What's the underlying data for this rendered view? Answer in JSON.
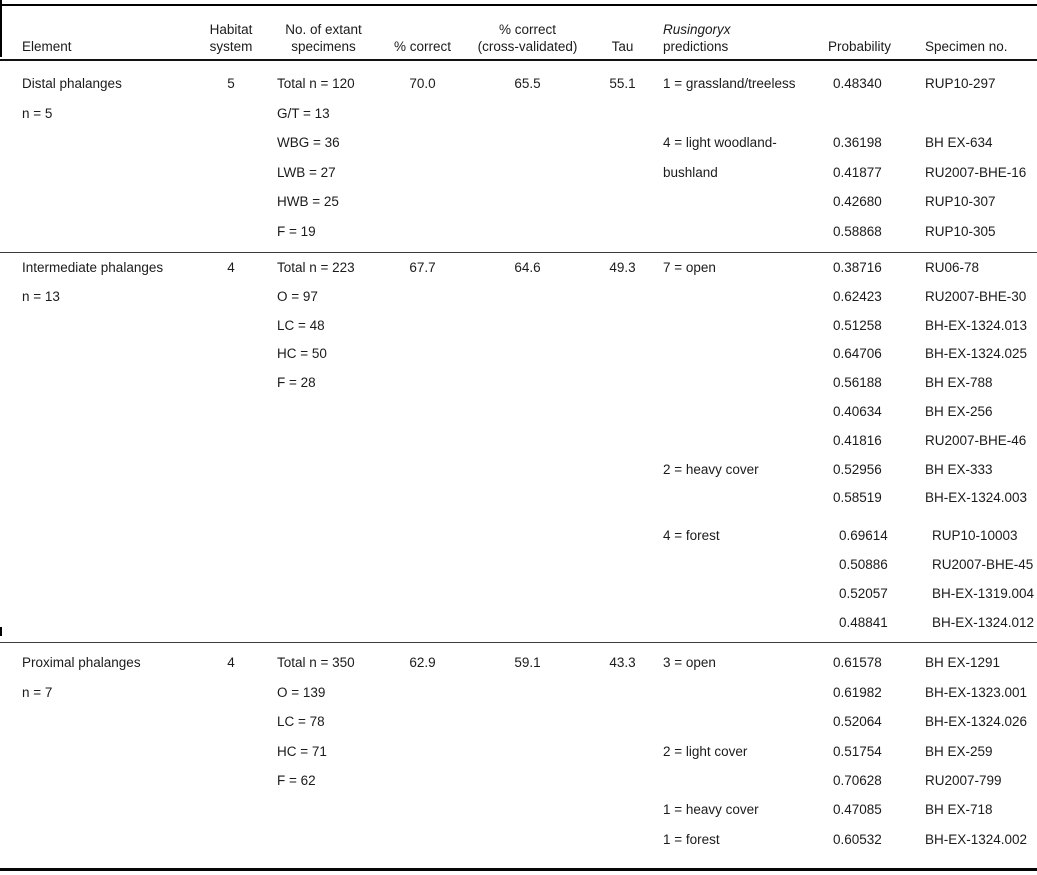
{
  "colors": {
    "text": "#1b1b1b",
    "rule": "#000000"
  },
  "table": {
    "columns": [
      {
        "id": "element",
        "lines": [
          "Element"
        ]
      },
      {
        "id": "habitat-system",
        "lines": [
          "Habitat",
          "system"
        ]
      },
      {
        "id": "extant-specimens",
        "lines": [
          "No. of extant",
          "specimens"
        ]
      },
      {
        "id": "pct-correct",
        "lines": [
          "% correct"
        ]
      },
      {
        "id": "pct-correct-cv",
        "lines": [
          "% correct",
          "(cross-validated)"
        ]
      },
      {
        "id": "tau",
        "lines": [
          "Tau"
        ]
      },
      {
        "id": "prediction",
        "lines": [
          "Rusingoryx",
          "predictions"
        ],
        "italic_line": 0
      },
      {
        "id": "probability",
        "lines": [
          "Probability"
        ]
      },
      {
        "id": "specimen-no",
        "lines": [
          "Specimen no."
        ]
      }
    ],
    "blocks": [
      {
        "element": "Distal phalanges",
        "rows": [
          {
            "cells": [
              "Distal phalanges",
              "5",
              "Total n = 120",
              "70.0",
              "65.5",
              "55.1",
              "1 = grassland/treeless",
              "0.48340",
              "RUP10-297"
            ]
          },
          {
            "cells": [
              "n = 5",
              "",
              "G/T = 13",
              "",
              "",
              "",
              "",
              "",
              ""
            ]
          },
          {
            "cells": [
              "",
              "",
              "WBG = 36",
              "",
              "",
              "",
              "4 = light woodland-",
              "0.36198",
              "BH EX-634"
            ]
          },
          {
            "cells": [
              "",
              "",
              "LWB = 27",
              "",
              "",
              "",
              "bushland",
              "0.41877",
              "RU2007-BHE-16"
            ]
          },
          {
            "cells": [
              "",
              "",
              "HWB = 25",
              "",
              "",
              "",
              "",
              "0.42680",
              "RUP10-307"
            ]
          },
          {
            "cells": [
              "",
              "",
              "F = 19",
              "",
              "",
              "",
              "",
              "0.58868",
              "RUP10-305"
            ]
          }
        ]
      },
      {
        "element": "Intermediate phalanges",
        "rows": [
          {
            "cells": [
              "Intermediate phalanges",
              "4",
              "Total n = 223",
              "67.7",
              "64.6",
              "49.3",
              "7 = open",
              "0.38716",
              "RU06-78"
            ]
          },
          {
            "cells": [
              "n = 13",
              "",
              "O = 97",
              "",
              "",
              "",
              "",
              "0.62423",
              "RU2007-BHE-30"
            ]
          },
          {
            "cells": [
              "",
              "",
              "LC = 48",
              "",
              "",
              "",
              "",
              "0.51258",
              "BH-EX-1324.013"
            ]
          },
          {
            "cells": [
              "",
              "",
              "HC = 50",
              "",
              "",
              "",
              "",
              "0.64706",
              "BH-EX-1324.025"
            ]
          },
          {
            "cells": [
              "",
              "",
              "F = 28",
              "",
              "",
              "",
              "",
              "0.56188",
              "BH EX-788"
            ]
          },
          {
            "cells": [
              "",
              "",
              "",
              "",
              "",
              "",
              "",
              "0.40634",
              "BH EX-256"
            ]
          },
          {
            "cells": [
              "",
              "",
              "",
              "",
              "",
              "",
              "",
              "0.41816",
              "RU2007-BHE-46"
            ]
          },
          {
            "cells": [
              "",
              "",
              "",
              "",
              "",
              "",
              "2 = heavy cover",
              "0.52956",
              "BH EX-333"
            ]
          },
          {
            "cells": [
              "",
              "",
              "",
              "",
              "",
              "",
              "",
              "0.58519",
              "BH-EX-1324.003"
            ]
          },
          {
            "cells": [
              "",
              "",
              "",
              "",
              "",
              "",
              "4 = forest",
              "0.69614",
              "RUP10-10003"
            ],
            "gap": true,
            "shift": true
          },
          {
            "cells": [
              "",
              "",
              "",
              "",
              "",
              "",
              "",
              "0.50886",
              "RU2007-BHE-45"
            ],
            "shift": true
          },
          {
            "cells": [
              "",
              "",
              "",
              "",
              "",
              "",
              "",
              "0.52057",
              "BH-EX-1319.004"
            ],
            "shift": true
          },
          {
            "cells": [
              "",
              "",
              "",
              "",
              "",
              "",
              "",
              "0.48841",
              "BH-EX-1324.012"
            ],
            "shift": true
          }
        ]
      },
      {
        "element": "Proximal phalanges",
        "rows": [
          {
            "cells": [
              "Proximal phalanges",
              "4",
              "Total n = 350",
              "62.9",
              "59.1",
              "43.3",
              "3 = open",
              "0.61578",
              "BH EX-1291"
            ]
          },
          {
            "cells": [
              "n = 7",
              "",
              "O = 139",
              "",
              "",
              "",
              "",
              "0.61982",
              "BH-EX-1323.001"
            ]
          },
          {
            "cells": [
              "",
              "",
              "LC = 78",
              "",
              "",
              "",
              "",
              "0.52064",
              "BH-EX-1324.026"
            ]
          },
          {
            "cells": [
              "",
              "",
              "HC = 71",
              "",
              "",
              "",
              "2 = light cover",
              "0.51754",
              "BH EX-259"
            ]
          },
          {
            "cells": [
              "",
              "",
              "F = 62",
              "",
              "",
              "",
              "",
              "0.70628",
              "RU2007-799"
            ]
          },
          {
            "cells": [
              "",
              "",
              "",
              "",
              "",
              "",
              "1 = heavy cover",
              "0.47085",
              "BH EX-718"
            ]
          },
          {
            "cells": [
              "",
              "",
              "",
              "",
              "",
              "",
              "1 = forest",
              "0.60532",
              "BH-EX-1324.002"
            ]
          }
        ]
      }
    ]
  }
}
